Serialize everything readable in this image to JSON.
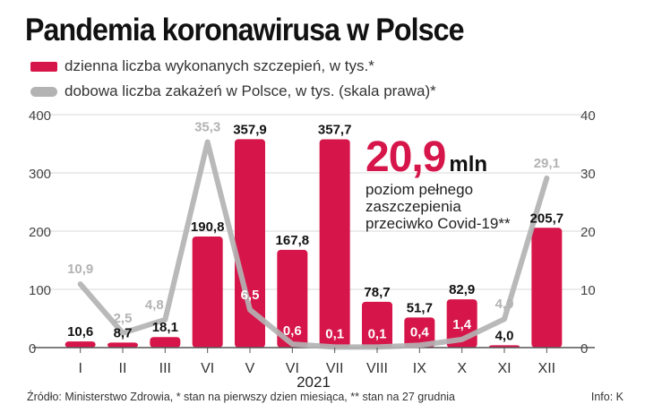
{
  "title": "Pandemia koronawirusa w Polsce",
  "legend": {
    "bars": "dzienna liczba wykonanych szczepień, w tys.*",
    "line": "dobowa liczba zakażeń w Polsce, w tys. (skala prawa)*"
  },
  "callout": {
    "value": "20,9",
    "unit": "mln",
    "lines": [
      "poziom pełnego",
      "zaszczepienia",
      "przeciwko Covid-19**"
    ]
  },
  "footer": "Źródło: Ministerstwo Zdrowia, * stan na pierwszy dzien miesiąca, ** stan na 27 grudnia",
  "credit": "Info: K",
  "colors": {
    "bar": "#d6164a",
    "line": "#b3b3b3",
    "axis": "#555555",
    "grid": "#d9d9d9"
  },
  "chart_data": {
    "type": "bar",
    "categories": [
      "I",
      "II",
      "III",
      "VI",
      "V",
      "VI",
      "VII",
      "VIII",
      "IX",
      "X",
      "XI",
      "XII"
    ],
    "year_label": "2021",
    "series": [
      {
        "axis": "left",
        "type": "bar",
        "values": [
          10.6,
          8.7,
          18.1,
          190.8,
          357.9,
          167.8,
          357.7,
          78.7,
          51.7,
          82.9,
          4.0,
          205.7
        ],
        "labels": [
          "10,6",
          "8,7",
          "18,1",
          "190,8",
          "357,9",
          "167,8",
          "357,7",
          "78,7",
          "51,7",
          "82,9",
          "4,0",
          "205,7"
        ]
      },
      {
        "axis": "right",
        "type": "line",
        "values": [
          10.9,
          2.5,
          4.8,
          35.3,
          6.5,
          0.6,
          0.1,
          0.1,
          0.4,
          1.4,
          4.9,
          29.1
        ],
        "labels": [
          "10,9",
          "2,5",
          "4,8",
          "35,3",
          "6,5",
          "0,6",
          "0,1",
          "0,1",
          "0,4",
          "1,4",
          "4,9",
          "29,1"
        ]
      }
    ],
    "y_left": {
      "range": [
        0,
        400
      ],
      "ticks": [
        "0",
        "100",
        "200",
        "300",
        "400"
      ]
    },
    "y_right": {
      "range": [
        0,
        40
      ],
      "ticks": [
        "0",
        "10",
        "20",
        "30",
        "40"
      ]
    },
    "grid": true
  }
}
